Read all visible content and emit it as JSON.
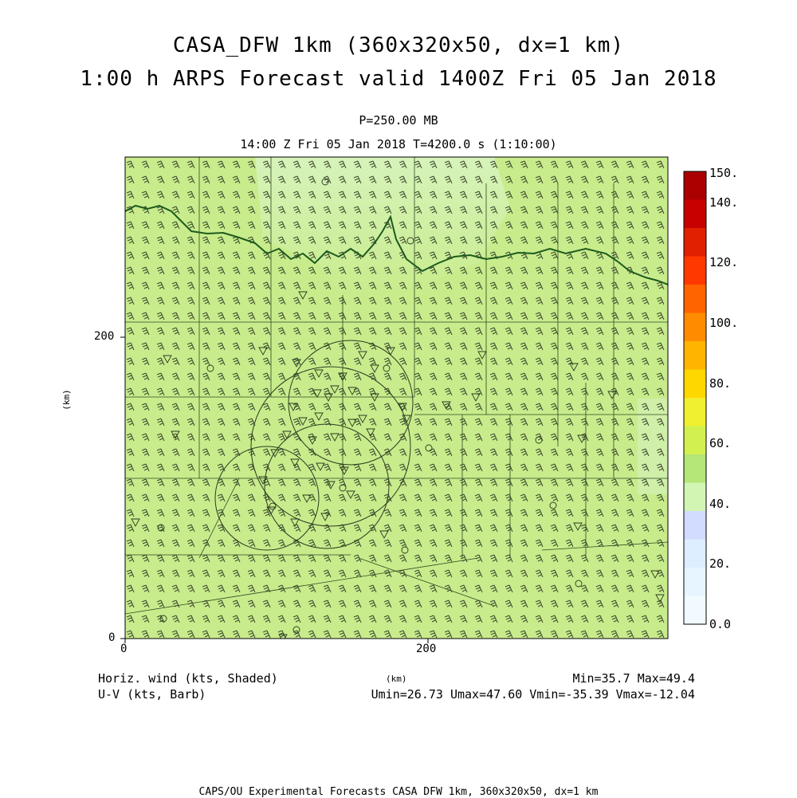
{
  "titles": {
    "line1": "CASA_DFW 1km (360x320x50, dx=1 km)",
    "line2": "1:00 h ARPS Forecast valid 1400Z Fri 05 Jan 2018",
    "level": "P=250.00 MB",
    "time": "14:00 Z Fri 05 Jan 2018   T=4200.0 s (1:10:00)"
  },
  "axes": {
    "x_unit": "(km)",
    "y_unit": "(km)",
    "x_ticks": [
      "0",
      "200"
    ],
    "y_ticks": [
      "0",
      "200"
    ],
    "x_range_km": [
      0,
      360
    ],
    "y_range_km": [
      0,
      320
    ]
  },
  "colorbar": {
    "labels": [
      "150.",
      "140.",
      "120.",
      "100.",
      "80.",
      "60.",
      "40.",
      "20.",
      "0.0"
    ],
    "colors": [
      "#aa0000",
      "#c80000",
      "#e02000",
      "#ff3800",
      "#ff6400",
      "#ff8c00",
      "#ffb400",
      "#ffd700",
      "#f0f030",
      "#d2f050",
      "#b4e678",
      "#d2f5b4",
      "#d2dcff",
      "#dceeff",
      "#e6f5ff",
      "#f0faff"
    ]
  },
  "legend": {
    "left1": "Horiz. wind (kts, Shaded)",
    "left2": "U-V (kts, Barb)",
    "right1": "Min=35.7 Max=49.4",
    "right2": "Umin=26.73 Umax=47.60 Vmin=-35.39 Vmax=-12.04"
  },
  "footer": "CAPS/OU Experimental Forecasts  CASA DFW 1km, 360x320x50, dx=1 km",
  "field": {
    "base_color": "#c8ec8c",
    "light_color": "#d8f4c0",
    "barb_color": "#3c4a2e"
  }
}
